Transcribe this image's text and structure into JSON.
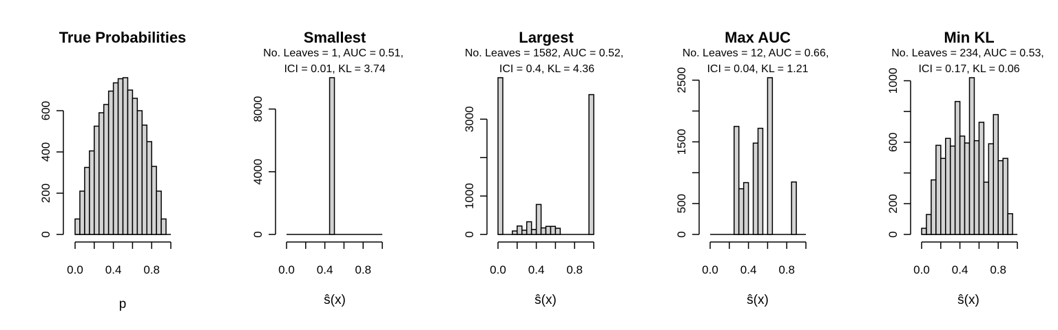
{
  "chart_data": [
    {
      "type": "bar",
      "title": "True Probabilities",
      "subtitle_lines": [],
      "xlabel": "p",
      "xlim": [
        0,
        1
      ],
      "xticks": [
        0.0,
        0.4,
        0.8
      ],
      "xtick_labels": [
        "0.0",
        "0.4",
        "0.8"
      ],
      "yticks": [
        0,
        200,
        400,
        600
      ],
      "ylim": [
        0,
        760
      ],
      "bin_width": 0.05,
      "values": [
        75,
        210,
        325,
        405,
        525,
        590,
        630,
        695,
        735,
        755,
        760,
        700,
        660,
        600,
        530,
        450,
        330,
        210,
        75,
        0
      ]
    },
    {
      "type": "bar",
      "title": "Smallest",
      "subtitle_lines": [
        "No. Leaves = 1, AUC = 0.51,",
        "ICI = 0.01, KL = 3.74"
      ],
      "xlabel": "ŝ(x)",
      "xlim": [
        0,
        1
      ],
      "xticks": [
        0.0,
        0.4,
        0.8
      ],
      "xtick_labels": [
        "0.0",
        "0.4",
        "0.8"
      ],
      "yticks": [
        0,
        4000,
        8000
      ],
      "ylim": [
        0,
        10000
      ],
      "bin_width": 0.05,
      "values": [
        0,
        0,
        0,
        0,
        0,
        0,
        0,
        0,
        0,
        10000,
        0,
        0,
        0,
        0,
        0,
        0,
        0,
        0,
        0,
        0
      ]
    },
    {
      "type": "bar",
      "title": "Largest",
      "subtitle_lines": [
        "No. Leaves = 1582, AUC = 0.52,",
        "ICI = 0.4, KL = 4.36"
      ],
      "xlabel": "ŝ(x)",
      "xlim": [
        0,
        1
      ],
      "xticks": [
        0.0,
        0.4,
        0.8
      ],
      "xtick_labels": [
        "0.0",
        "0.4",
        "0.8"
      ],
      "yticks": [
        0,
        1000,
        3000
      ],
      "ylim": [
        0,
        4080
      ],
      "bin_width": 0.05,
      "values": [
        4080,
        0,
        0,
        90,
        220,
        110,
        330,
        130,
        780,
        170,
        210,
        210,
        160,
        0,
        0,
        0,
        0,
        0,
        0,
        3640
      ]
    },
    {
      "type": "bar",
      "title": "Max AUC",
      "subtitle_lines": [
        "No. Leaves = 12, AUC = 0.66,",
        "ICI = 0.04, KL = 1.21"
      ],
      "xlabel": "ŝ(x)",
      "xlim": [
        0,
        1
      ],
      "xticks": [
        0.0,
        0.4,
        0.8
      ],
      "xtick_labels": [
        "0.0",
        "0.4",
        "0.8"
      ],
      "yticks": [
        0,
        500,
        1500,
        2500
      ],
      "ylim": [
        0,
        2540
      ],
      "bin_width": 0.05,
      "values": [
        0,
        0,
        0,
        0,
        0,
        1750,
        740,
        840,
        0,
        1480,
        1720,
        0,
        2540,
        0,
        0,
        0,
        0,
        850,
        0,
        0
      ]
    },
    {
      "type": "bar",
      "title": "Min KL",
      "subtitle_lines": [
        "No. Leaves = 234, AUC = 0.53,",
        "ICI = 0.17, KL = 0.06"
      ],
      "xlabel": "ŝ(x)",
      "xlim": [
        0,
        1
      ],
      "xticks": [
        0.0,
        0.4,
        0.8
      ],
      "xtick_labels": [
        "0.0",
        "0.4",
        "0.8"
      ],
      "yticks": [
        0,
        200,
        600,
        1000
      ],
      "ylim": [
        0,
        1020
      ],
      "bin_width": 0.05,
      "values": [
        40,
        130,
        355,
        580,
        495,
        625,
        575,
        865,
        640,
        595,
        1020,
        610,
        730,
        340,
        590,
        780,
        480,
        495,
        135,
        0
      ]
    }
  ]
}
